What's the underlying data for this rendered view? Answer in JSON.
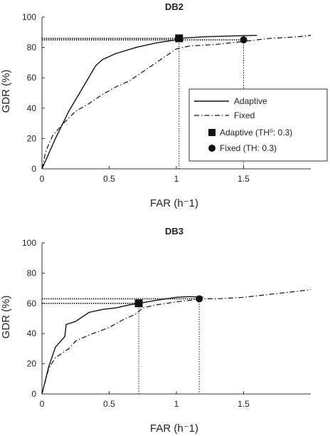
{
  "colors": {
    "line": "#111111",
    "axis": "#333333",
    "background": "#ffffff"
  },
  "legend": {
    "entries": [
      {
        "label": "Adaptive",
        "style": "solid"
      },
      {
        "label": "Fixed",
        "style": "dashdot"
      },
      {
        "label": "Adaptive (TH⁰: 0.3)",
        "marker": "square"
      },
      {
        "label": "Fixed (TH: 0.3)",
        "marker": "circle"
      }
    ],
    "placement": "inside-right (top chart only)"
  },
  "chart_data": [
    {
      "type": "line",
      "title": "DB2",
      "xlabel": "FAR (h⁻1)",
      "ylabel": "GDR (%)",
      "xlim": [
        0,
        2
      ],
      "ylim": [
        0,
        100
      ],
      "xticks": [
        "0",
        "0.5",
        "1",
        "1.5"
      ],
      "yticks": [
        "0",
        "20",
        "40",
        "60",
        "80",
        "100"
      ],
      "grid": false,
      "series": [
        {
          "name": "Adaptive",
          "style": "solid",
          "points": [
            [
              0,
              0
            ],
            [
              0.05,
              10
            ],
            [
              0.1,
              20
            ],
            [
              0.2,
              38
            ],
            [
              0.3,
              53
            ],
            [
              0.4,
              68
            ],
            [
              0.45,
              72
            ],
            [
              0.55,
              76
            ],
            [
              0.7,
              80
            ],
            [
              0.85,
              83
            ],
            [
              1.0,
              85
            ],
            [
              1.02,
              86
            ],
            [
              1.2,
              87
            ],
            [
              1.4,
              87.5
            ],
            [
              1.6,
              88
            ]
          ]
        },
        {
          "name": "Fixed",
          "style": "dashdot",
          "points": [
            [
              0,
              0
            ],
            [
              0.03,
              12
            ],
            [
              0.08,
              22
            ],
            [
              0.15,
              29
            ],
            [
              0.25,
              38
            ],
            [
              0.35,
              43
            ],
            [
              0.45,
              49
            ],
            [
              0.55,
              54
            ],
            [
              0.65,
              58
            ],
            [
              0.8,
              67
            ],
            [
              0.9,
              73
            ],
            [
              1.0,
              79
            ],
            [
              1.1,
              81
            ],
            [
              1.3,
              82
            ],
            [
              1.5,
              84
            ],
            [
              1.7,
              86
            ],
            [
              1.9,
              87
            ],
            [
              2.0,
              88
            ]
          ]
        }
      ],
      "markers": [
        {
          "series": "Adaptive",
          "shape": "square",
          "x": 1.02,
          "y": 86
        },
        {
          "series": "Fixed",
          "shape": "circle",
          "x": 1.5,
          "y": 85
        }
      ]
    },
    {
      "type": "line",
      "title": "DB3",
      "xlabel": "FAR (h⁻1)",
      "ylabel": "GDR (%)",
      "xlim": [
        0,
        2
      ],
      "ylim": [
        0,
        100
      ],
      "xticks": [
        "0",
        "0.5",
        "1",
        "1.5"
      ],
      "yticks": [
        "0",
        "20",
        "40",
        "60",
        "80",
        "100"
      ],
      "grid": false,
      "series": [
        {
          "name": "Adaptive",
          "style": "solid",
          "points": [
            [
              0,
              0
            ],
            [
              0.05,
              18
            ],
            [
              0.1,
              31
            ],
            [
              0.15,
              36
            ],
            [
              0.17,
              38
            ],
            [
              0.18,
              46
            ],
            [
              0.25,
              48
            ],
            [
              0.35,
              54
            ],
            [
              0.45,
              56
            ],
            [
              0.55,
              57
            ],
            [
              0.65,
              59
            ],
            [
              0.72,
              60
            ],
            [
              0.85,
              62
            ],
            [
              1.0,
              64
            ],
            [
              1.1,
              64.5
            ],
            [
              1.2,
              64
            ]
          ]
        },
        {
          "name": "Fixed",
          "style": "dashdot",
          "points": [
            [
              0,
              0
            ],
            [
              0.05,
              17
            ],
            [
              0.1,
              24
            ],
            [
              0.15,
              27
            ],
            [
              0.2,
              30
            ],
            [
              0.25,
              35
            ],
            [
              0.3,
              37
            ],
            [
              0.35,
              39
            ],
            [
              0.5,
              44
            ],
            [
              0.6,
              49
            ],
            [
              0.7,
              53
            ],
            [
              0.75,
              57
            ],
            [
              0.85,
              59
            ],
            [
              1.0,
              61
            ],
            [
              1.1,
              62
            ],
            [
              1.17,
              63
            ],
            [
              1.3,
              63
            ],
            [
              1.5,
              64
            ],
            [
              1.7,
              66
            ],
            [
              1.9,
              68
            ],
            [
              2.0,
              69
            ]
          ]
        }
      ],
      "markers": [
        {
          "series": "Adaptive",
          "shape": "square",
          "x": 0.72,
          "y": 60
        },
        {
          "series": "Fixed",
          "shape": "circle",
          "x": 1.17,
          "y": 63
        }
      ]
    }
  ]
}
